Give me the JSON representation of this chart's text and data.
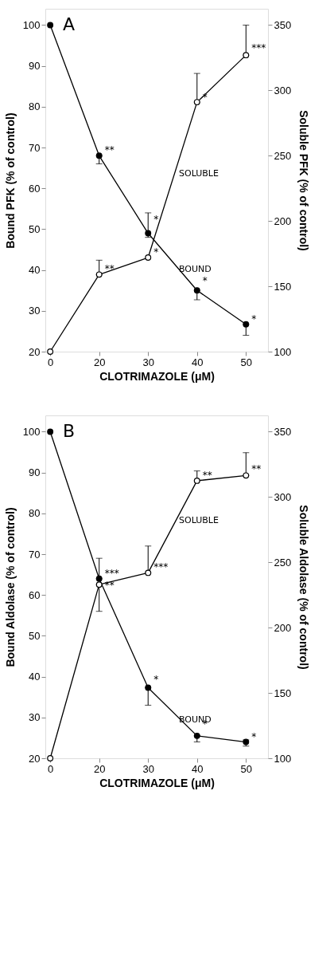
{
  "chart_data": [
    {
      "type": "line",
      "xlabel": "CLOTRIMAZOLE (μM)",
      "ylabel": "Bound PFK (% of control)",
      "y2label": "Soluble PFK (% of control)",
      "categories": [
        "0",
        "20",
        "30",
        "40",
        "50"
      ],
      "ylim": [
        20,
        104
      ],
      "yticks": [
        20,
        30,
        40,
        50,
        60,
        70,
        80,
        90,
        100
      ],
      "y2lim": [
        100,
        362.5
      ],
      "y2ticks": [
        100,
        150,
        200,
        250,
        300,
        350
      ],
      "grid": false,
      "marker": "circle",
      "line_style": "solid",
      "series": [
        {
          "name": "BOUND",
          "color": "#000000",
          "values": [
            100,
            68,
            49,
            35,
            26.7
          ],
          "errors": [
            null,
            [
              66,
              68
            ],
            [
              48,
              54
            ],
            [
              32.7,
              35
            ],
            [
              24,
              26.7
            ]
          ]
        },
        {
          "name": "SOLUBLE",
          "color": "#000000",
          "axis": "y2",
          "values": [
            100,
            159,
            172,
            291,
            327
          ],
          "errors": [
            null,
            [
              159,
              170
            ],
            null,
            [
              291,
              313
            ],
            [
              327,
              350
            ]
          ]
        }
      ],
      "annotations": [
        "A",
        {
          "text": "**",
          "x": "20",
          "y": 68
        },
        {
          "text": "*",
          "x": "30",
          "y": 51
        },
        {
          "text": "**",
          "x": "20",
          "y": 39
        },
        {
          "text": "*",
          "x": "30",
          "y": 43
        },
        {
          "text": "*",
          "x": "40",
          "y": 81
        },
        {
          "text": "***",
          "x": "50",
          "y": 93
        },
        {
          "text": "*",
          "x": "40",
          "y": 36
        },
        {
          "text": "*",
          "x": "50",
          "y": 26.7
        }
      ]
    },
    {
      "type": "line",
      "xlabel": "CLOTRIMAZOLE (μM)",
      "ylabel": "Bound Aldolase (% of control)",
      "y2label": "Soluble Aldolase (% of control)",
      "categories": [
        "0",
        "20",
        "30",
        "40",
        "50"
      ],
      "ylim": [
        20,
        104
      ],
      "yticks": [
        20,
        30,
        40,
        50,
        60,
        70,
        80,
        90,
        100
      ],
      "y2lim": [
        100,
        362.5
      ],
      "y2ticks": [
        100,
        150,
        200,
        250,
        300,
        350
      ],
      "grid": false,
      "marker": "circle",
      "line_style": "solid",
      "series": [
        {
          "name": "BOUND",
          "color": "#000000",
          "values": [
            100,
            64,
            37.3,
            25.5,
            24
          ],
          "errors": [
            null,
            [
              64,
              69
            ],
            [
              33,
              37.3
            ],
            [
              24,
              25.5
            ],
            [
              23,
              24.5
            ]
          ]
        },
        {
          "name": "SOLUBLE",
          "color": "#000000",
          "axis": "y2",
          "values": [
            100,
            233,
            242,
            312.5,
            316.5
          ],
          "errors": [
            null,
            [
              212.5,
              233
            ],
            [
              242,
              262.5
            ],
            [
              312.5,
              320
            ],
            [
              316.5,
              334
            ]
          ]
        }
      ],
      "annotations": [
        "B",
        {
          "text": "***",
          "x": "20",
          "y": 64
        },
        {
          "text": "**",
          "x": "20",
          "y": 61
        },
        {
          "text": "***",
          "x": "30",
          "y": 65.5
        },
        {
          "text": "**",
          "x": "40",
          "y": 88
        },
        {
          "text": "**",
          "x": "50",
          "y": 89.5
        },
        {
          "text": "*",
          "x": "30",
          "y": 38
        },
        {
          "text": "*",
          "x": "40",
          "y": 27
        },
        {
          "text": "*",
          "x": "50",
          "y": 24
        }
      ]
    }
  ]
}
